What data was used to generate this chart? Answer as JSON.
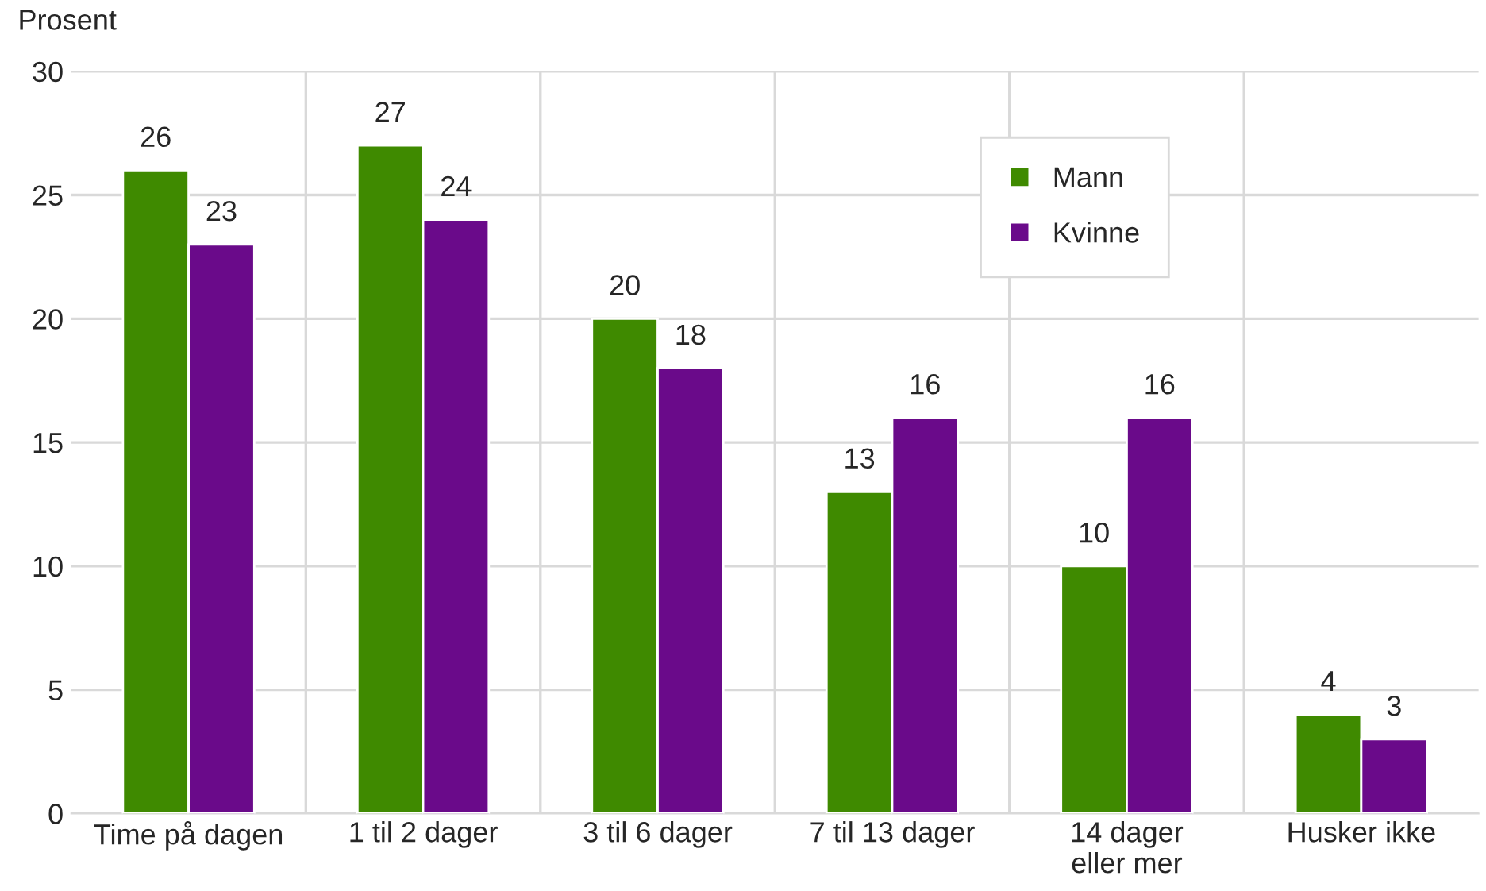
{
  "chart_data": {
    "type": "bar",
    "ylabel": "Prosent",
    "categories": [
      "Time på dagen",
      "1 til 2 dager",
      "3 til 6 dager",
      "7 til 13 dager",
      "14 dager\neller mer",
      "Husker ikke"
    ],
    "series": [
      {
        "name": "Mann",
        "color": "#3f8a00",
        "values": [
          26,
          27,
          20,
          13,
          10,
          4
        ]
      },
      {
        "name": "Kvinne",
        "color": "#6a0a8a",
        "values": [
          23,
          24,
          18,
          16,
          16,
          3
        ]
      }
    ],
    "ylim": [
      0,
      30
    ],
    "yticks": [
      0,
      5,
      10,
      15,
      20,
      25,
      30
    ],
    "grid": true,
    "legend": "top right",
    "data_labels": true
  }
}
